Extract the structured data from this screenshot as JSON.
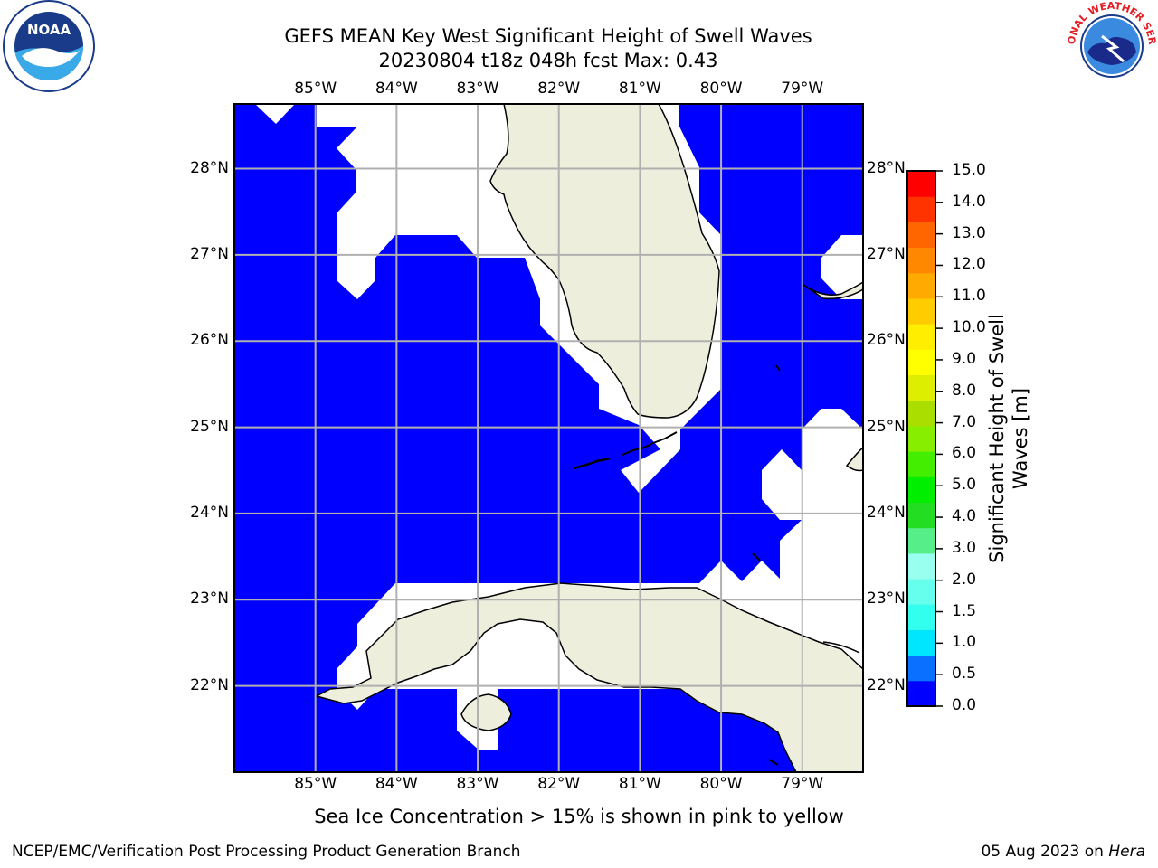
{
  "header": {
    "title_line1": "GEFS MEAN Key West Significant Height of Swell Waves",
    "title_line2": "20230804 t18z 048h fcst   Max: 0.43"
  },
  "logos": {
    "left": "NOAA",
    "right": "NATIONAL WEATHER SERVICE"
  },
  "map": {
    "lon_labels": [
      "85°W",
      "84°W",
      "83°W",
      "82°W",
      "81°W",
      "80°W",
      "79°W"
    ],
    "lat_labels": [
      "28°N",
      "27°N",
      "26°N",
      "25°N",
      "24°N",
      "23°N",
      "22°N"
    ],
    "lon_range": [
      -86.0,
      -78.25
    ],
    "lat_range": [
      21.0,
      28.75
    ],
    "ocean_color": "#0000ff",
    "land_color": "#eeeedd",
    "gridline_color": "#b0b0b0"
  },
  "colorbar": {
    "label": "Significant Height of Swell Waves [m]",
    "ticks": [
      "15.0",
      "14.0",
      "13.0",
      "12.0",
      "11.0",
      "10.0",
      "9.0",
      "8.0",
      "7.0",
      "6.0",
      "5.0",
      "4.0",
      "3.0",
      "2.0",
      "1.5",
      "1.0",
      "0.5",
      "0.0"
    ],
    "colors": [
      "#0000ff",
      "#0a70ff",
      "#00e6ff",
      "#33ffee",
      "#66ffee",
      "#99ffee",
      "#55ee88",
      "#22dd22",
      "#00ee00",
      "#44ee00",
      "#88ee00",
      "#aadd00",
      "#ddee00",
      "#ffff00",
      "#ffee00",
      "#ffcc00",
      "#ffaa00",
      "#ff8800",
      "#ff6600",
      "#ff3300",
      "#ff0000"
    ]
  },
  "caption": "Sea Ice Concentration > 15% is shown in pink to yellow",
  "footer": {
    "left": "NCEP/EMC/Verification Post Processing Product Generation Branch",
    "date": "05 Aug 2023 on",
    "machine": "Hera"
  }
}
